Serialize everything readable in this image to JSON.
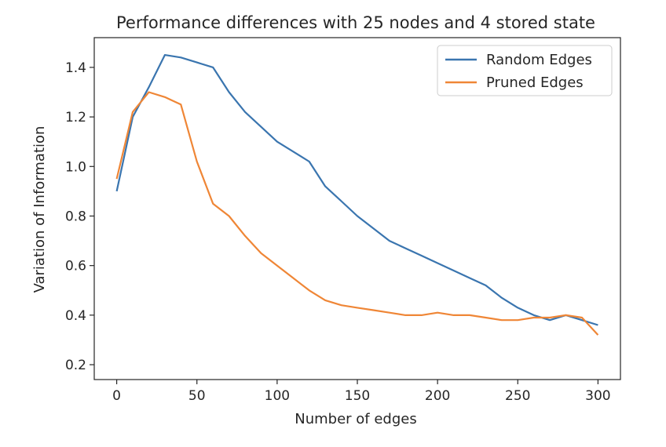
{
  "chart_data": {
    "type": "line",
    "title": "Performance differences with 25 nodes and 4 stored state",
    "xlabel": "Number of edges",
    "ylabel": "Variation of Information",
    "xlim": [
      -14,
      314
    ],
    "ylim": [
      0.14,
      1.52
    ],
    "xticks": [
      0,
      50,
      100,
      150,
      200,
      250,
      300
    ],
    "yticks": [
      0.2,
      0.4,
      0.6,
      0.8,
      1.0,
      1.2,
      1.4
    ],
    "xtick_labels": [
      "0",
      "50",
      "100",
      "150",
      "200",
      "250",
      "300"
    ],
    "ytick_labels": [
      "0.2",
      "0.4",
      "0.6",
      "0.8",
      "1.0",
      "1.2",
      "1.4"
    ],
    "grid": false,
    "legend_position": "top-right",
    "series": [
      {
        "name": "Random Edges",
        "color": "#3a75af",
        "x": [
          0,
          10,
          20,
          30,
          40,
          50,
          60,
          70,
          80,
          90,
          100,
          110,
          120,
          130,
          140,
          150,
          160,
          170,
          180,
          190,
          200,
          210,
          220,
          230,
          240,
          250,
          260,
          270,
          280,
          290,
          300
        ],
        "y": [
          0.9,
          1.2,
          1.32,
          1.45,
          1.44,
          1.42,
          1.4,
          1.3,
          1.22,
          1.16,
          1.1,
          1.06,
          1.02,
          0.92,
          0.86,
          0.8,
          0.75,
          0.7,
          0.67,
          0.64,
          0.61,
          0.58,
          0.55,
          0.52,
          0.47,
          0.43,
          0.4,
          0.38,
          0.4,
          0.38,
          0.36
        ]
      },
      {
        "name": "Pruned Edges",
        "color": "#ef8636",
        "x": [
          0,
          10,
          20,
          30,
          40,
          50,
          60,
          70,
          80,
          90,
          100,
          110,
          120,
          130,
          140,
          150,
          160,
          170,
          180,
          190,
          200,
          210,
          220,
          230,
          240,
          250,
          260,
          270,
          280,
          290,
          300
        ],
        "y": [
          0.95,
          1.22,
          1.3,
          1.28,
          1.25,
          1.02,
          0.85,
          0.8,
          0.72,
          0.65,
          0.6,
          0.55,
          0.5,
          0.46,
          0.44,
          0.43,
          0.42,
          0.41,
          0.4,
          0.4,
          0.41,
          0.4,
          0.4,
          0.39,
          0.38,
          0.38,
          0.39,
          0.39,
          0.4,
          0.39,
          0.32
        ]
      }
    ]
  }
}
